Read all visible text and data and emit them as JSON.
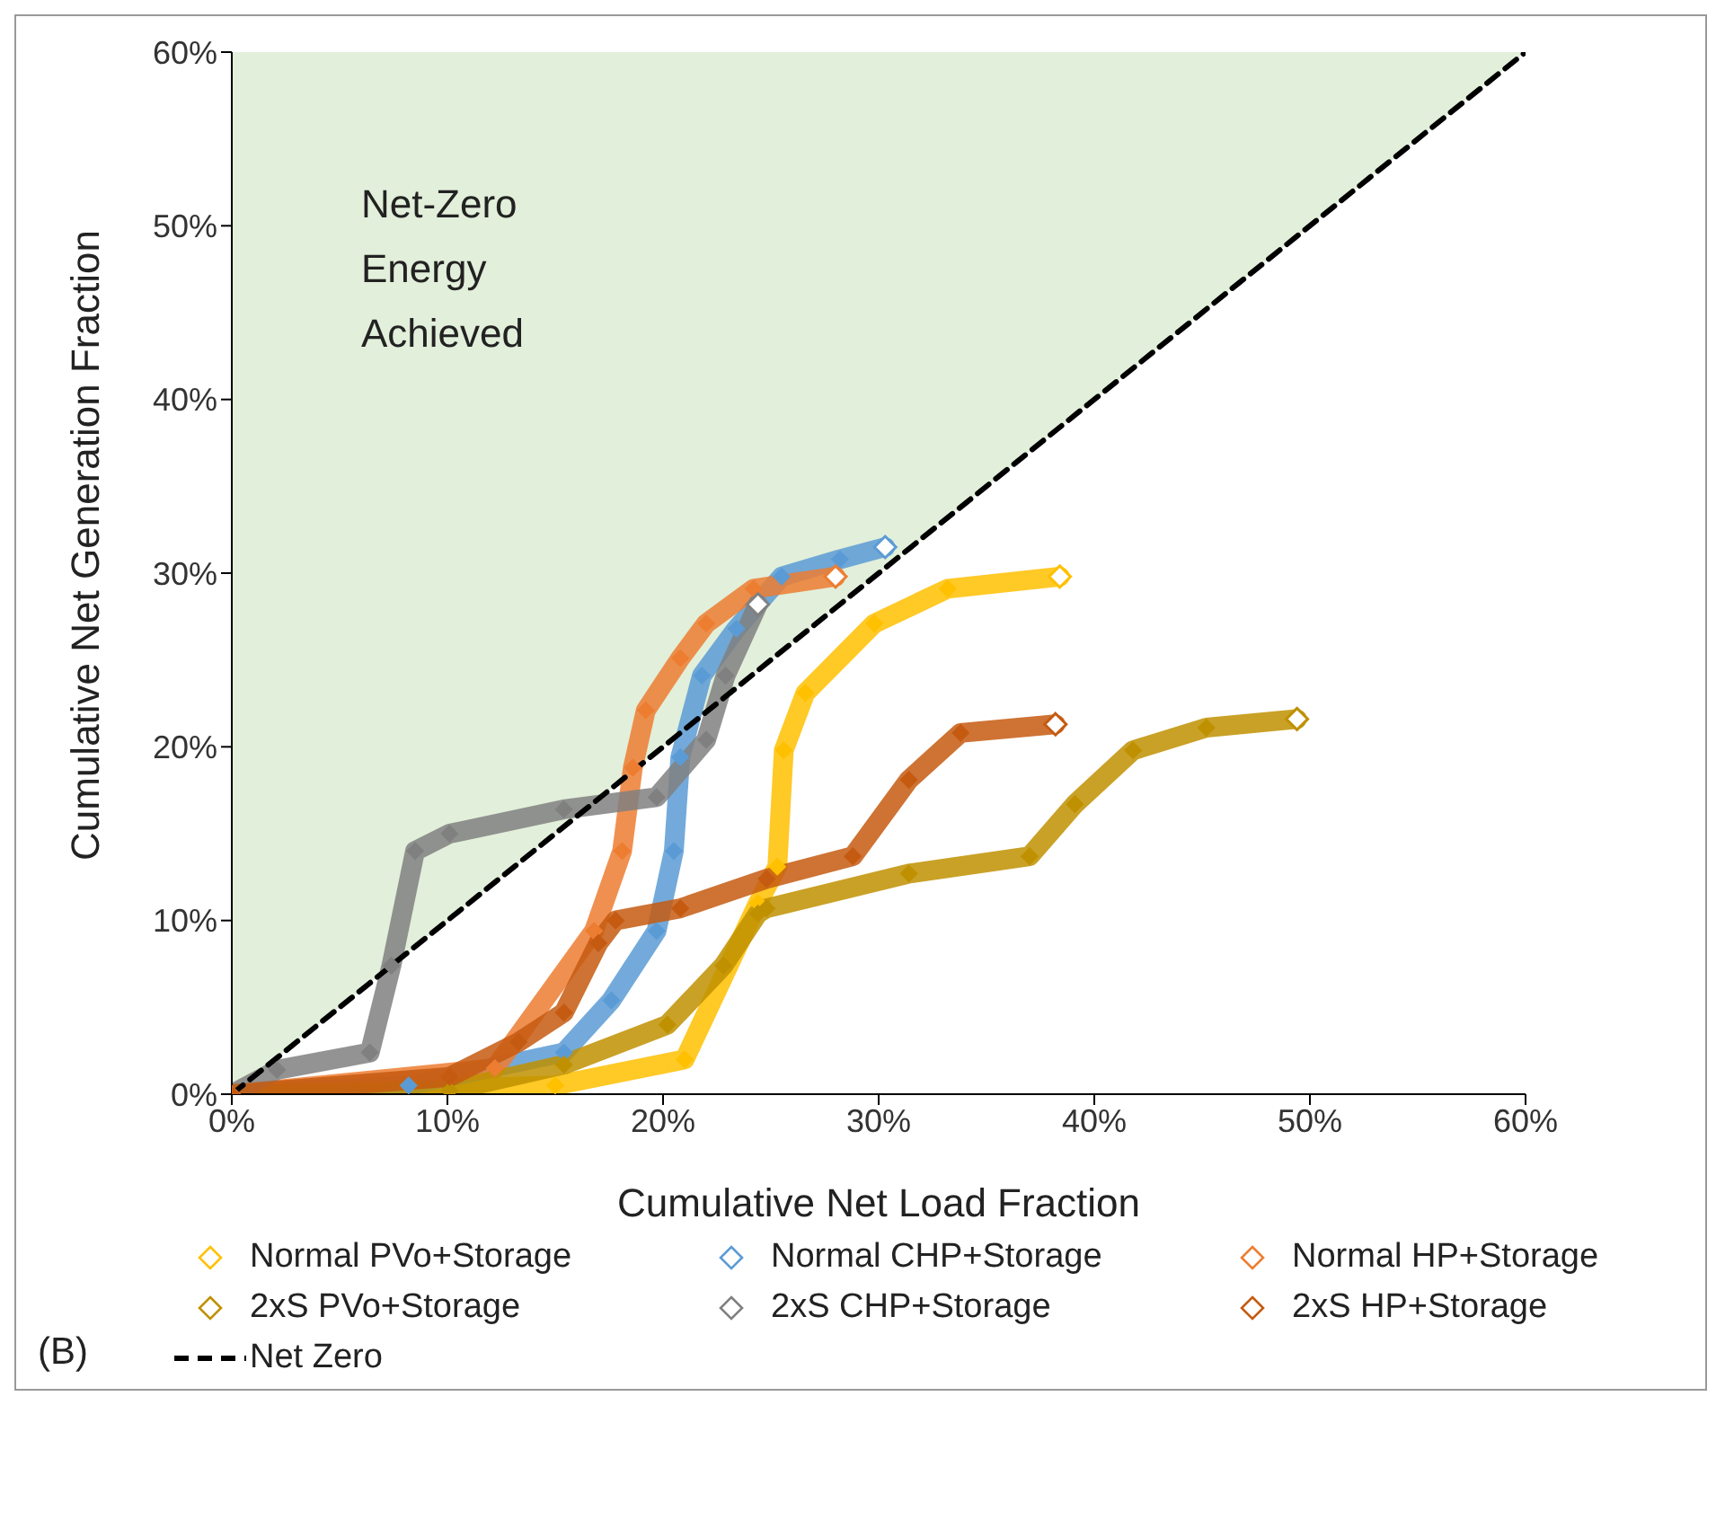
{
  "chart_data": {
    "type": "line",
    "xlabel": "Cumulative Net Load Fraction",
    "ylabel": "Cumulative Net Generation Fraction",
    "xlim": [
      0,
      60
    ],
    "ylim": [
      0,
      60
    ],
    "xticks": [
      {
        "value": 0,
        "label": "0%"
      },
      {
        "value": 10,
        "label": "10%"
      },
      {
        "value": 20,
        "label": "20%"
      },
      {
        "value": 30,
        "label": "30%"
      },
      {
        "value": 40,
        "label": "40%"
      },
      {
        "value": 50,
        "label": "50%"
      },
      {
        "value": 60,
        "label": "60%"
      }
    ],
    "yticks": [
      {
        "value": 0,
        "label": "0%"
      },
      {
        "value": 10,
        "label": "10%"
      },
      {
        "value": 20,
        "label": "20%"
      },
      {
        "value": 30,
        "label": "30%"
      },
      {
        "value": 40,
        "label": "40%"
      },
      {
        "value": 50,
        "label": "50%"
      },
      {
        "value": 60,
        "label": "60%"
      }
    ],
    "legend": "bottom",
    "marker": "diamond",
    "annotations": [
      "Net-Zero Energy Achieved",
      "(B)"
    ],
    "series": [
      {
        "name": "Normal PVo+Storage",
        "color": "#ffc000",
        "x": [
          0,
          15,
          21,
          24.4,
          25.3,
          25.6,
          26.6,
          29.8,
          33.2,
          38.4
        ],
        "values": [
          0,
          0.5,
          2,
          11,
          13.1,
          19.8,
          23.1,
          27.1,
          29.1,
          29.8
        ]
      },
      {
        "name": "Normal CHP+Storage",
        "color": "#5b9bd5",
        "x": [
          0,
          8.2,
          15.4,
          17.6,
          19.7,
          20.5,
          20.8,
          21.8,
          23.4,
          25.5,
          28.2,
          30.3
        ],
        "values": [
          0,
          0.5,
          2.4,
          5.4,
          9.4,
          14,
          19.4,
          24.1,
          26.8,
          29.8,
          30.8,
          31.5
        ]
      },
      {
        "name": "Normal HP+Storage",
        "color": "#ed7d31",
        "x": [
          0,
          12.2,
          16.8,
          18.1,
          18.6,
          19.2,
          20.8,
          22,
          24.2,
          28
        ],
        "values": [
          0,
          1.5,
          9.4,
          14,
          18.8,
          22.1,
          25.1,
          27.1,
          29.1,
          29.8
        ]
      },
      {
        "name": "2xS PVo+Storage",
        "color": "#bf9000",
        "x": [
          0,
          10.1,
          15.4,
          20.2,
          22.8,
          24.4,
          24.8,
          31.4,
          37,
          39.1,
          41.8,
          45.2,
          49.4
        ],
        "values": [
          0,
          0.2,
          1.7,
          4,
          7.4,
          10.4,
          10.7,
          12.7,
          13.7,
          16.7,
          19.8,
          21.1,
          21.6
        ]
      },
      {
        "name": "2xS CHP+Storage",
        "color": "#808080",
        "x": [
          0,
          2.1,
          6.4,
          7.4,
          8.5,
          10.1,
          15.4,
          19.7,
          22,
          22.9,
          24.4
        ],
        "values": [
          0,
          1.4,
          2.4,
          7.4,
          14,
          15,
          16.4,
          17.1,
          20.4,
          24.1,
          28.2
        ]
      },
      {
        "name": "2xS HP+Storage",
        "color": "#c55a11",
        "x": [
          0,
          10.1,
          13.3,
          15.4,
          17,
          17.8,
          20.8,
          24.8,
          28.8,
          31.4,
          33.8,
          38.2
        ],
        "values": [
          0,
          1,
          3,
          4.7,
          8.7,
          10,
          10.7,
          12.4,
          13.7,
          18.1,
          20.8,
          21.3
        ]
      },
      {
        "name": "Net Zero",
        "color": "#000000",
        "type": "line",
        "marker": "none",
        "line_style": "dashed",
        "x": [
          0,
          60
        ],
        "values": [
          0,
          60
        ]
      }
    ]
  }
}
